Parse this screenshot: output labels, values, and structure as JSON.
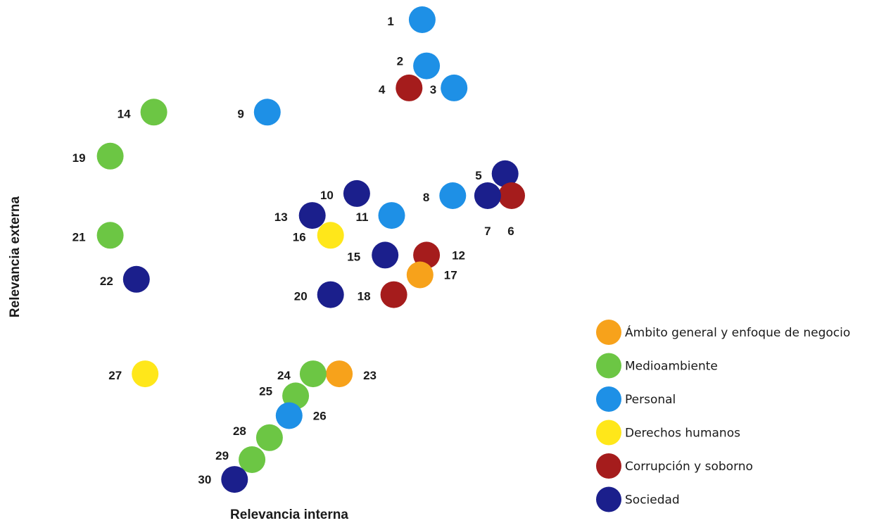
{
  "chart_data": {
    "type": "scatter",
    "xlabel": "Relevancia interna",
    "ylabel": "Relevancia externa",
    "legend": {
      "placement": "bottom-right",
      "items": [
        {
          "key": "general",
          "label": "Ámbito general y enfoque de negocio",
          "color": "#F7A21B"
        },
        {
          "key": "medio",
          "label": "Medioambiente",
          "color": "#6CC644"
        },
        {
          "key": "personal",
          "label": "Personal",
          "color": "#1E90E6"
        },
        {
          "key": "ddhh",
          "label": "Derechos humanos",
          "color": "#FFE71A"
        },
        {
          "key": "corrupcion",
          "label": "Corrupción y soborno",
          "color": "#A51C1C"
        },
        {
          "key": "sociedad",
          "label": "Sociedad",
          "color": "#1B1F8C"
        }
      ]
    },
    "points": [
      {
        "label": "1",
        "category": "personal",
        "x": 0.745,
        "y": 1.0
      },
      {
        "label": "2",
        "category": "personal",
        "x": 0.755,
        "y": 0.895
      },
      {
        "label": "3",
        "category": "personal",
        "x": 0.818,
        "y": 0.845
      },
      {
        "label": "4",
        "category": "corrupcion",
        "x": 0.715,
        "y": 0.845
      },
      {
        "label": "5",
        "category": "sociedad",
        "x": 0.935,
        "y": 0.65
      },
      {
        "label": "6",
        "category": "corrupcion",
        "x": 0.95,
        "y": 0.6
      },
      {
        "label": "7",
        "category": "sociedad",
        "x": 0.895,
        "y": 0.6
      },
      {
        "label": "8",
        "category": "personal",
        "x": 0.815,
        "y": 0.6
      },
      {
        "label": "9",
        "category": "personal",
        "x": 0.39,
        "y": 0.79
      },
      {
        "label": "10",
        "category": "sociedad",
        "x": 0.595,
        "y": 0.605
      },
      {
        "label": "11",
        "category": "personal",
        "x": 0.675,
        "y": 0.555
      },
      {
        "label": "12",
        "category": "corrupcion",
        "x": 0.755,
        "y": 0.465
      },
      {
        "label": "13",
        "category": "sociedad",
        "x": 0.493,
        "y": 0.555
      },
      {
        "label": "14",
        "category": "medio",
        "x": 0.13,
        "y": 0.79
      },
      {
        "label": "15",
        "category": "sociedad",
        "x": 0.66,
        "y": 0.465
      },
      {
        "label": "16",
        "category": "ddhh",
        "x": 0.535,
        "y": 0.51
      },
      {
        "label": "17",
        "category": "general",
        "x": 0.74,
        "y": 0.42
      },
      {
        "label": "18",
        "category": "corrupcion",
        "x": 0.68,
        "y": 0.375
      },
      {
        "label": "19",
        "category": "medio",
        "x": 0.03,
        "y": 0.69
      },
      {
        "label": "20",
        "category": "sociedad",
        "x": 0.535,
        "y": 0.375
      },
      {
        "label": "21",
        "category": "medio",
        "x": 0.03,
        "y": 0.51
      },
      {
        "label": "22",
        "category": "sociedad",
        "x": 0.09,
        "y": 0.41
      },
      {
        "label": "23",
        "category": "general",
        "x": 0.555,
        "y": 0.195
      },
      {
        "label": "24",
        "category": "medio",
        "x": 0.495,
        "y": 0.195
      },
      {
        "label": "25",
        "category": "medio",
        "x": 0.455,
        "y": 0.145
      },
      {
        "label": "26",
        "category": "personal",
        "x": 0.44,
        "y": 0.1
      },
      {
        "label": "27",
        "category": "ddhh",
        "x": 0.11,
        "y": 0.195
      },
      {
        "label": "28",
        "category": "medio",
        "x": 0.395,
        "y": 0.05
      },
      {
        "label": "29",
        "category": "medio",
        "x": 0.355,
        "y": 0.0
      },
      {
        "label": "30",
        "category": "sociedad",
        "x": 0.315,
        "y": -0.045
      }
    ]
  }
}
